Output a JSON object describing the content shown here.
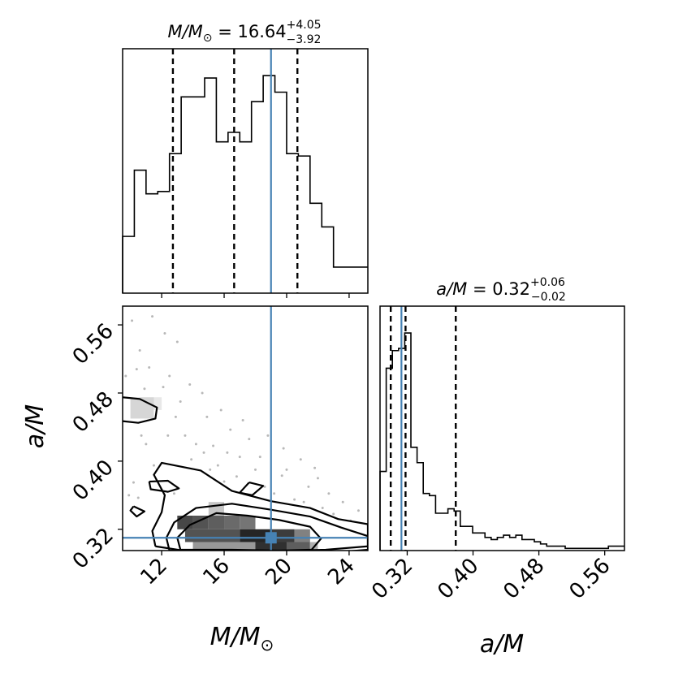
{
  "chart_data": [
    {
      "type": "histogram",
      "panel": "M/Msun marginal",
      "title": "M/M⊙ = 16.64 (+4.05 / −3.92)",
      "title_parts": {
        "lhs": "M/M",
        "sun": "⊙",
        "eq": " = 16.64",
        "plus": "+4.05",
        "minus": "−3.92"
      },
      "xlim": [
        9.5,
        25.2
      ],
      "ticks": [
        12,
        16,
        20,
        24
      ],
      "bins": [
        9.5,
        10.25,
        11.0,
        11.75,
        12.5,
        13.25,
        14.0,
        14.75,
        15.5,
        16.25,
        17.0,
        17.75,
        18.5,
        19.25,
        20.0,
        20.75,
        21.5,
        22.25,
        23.0,
        23.75,
        24.5,
        25.2
      ],
      "counts": [
        0.24,
        0.52,
        0.42,
        0.43,
        0.59,
        0.83,
        0.83,
        0.91,
        0.64,
        0.68,
        0.64,
        0.81,
        0.92,
        0.85,
        0.59,
        0.58,
        0.38,
        0.28,
        0.11,
        0.11,
        0.11
      ],
      "quantiles": [
        12.72,
        16.64,
        20.69
      ],
      "truth": 19.0,
      "line_style": "dashed black (quantiles), solid steelblue (truth)"
    },
    {
      "type": "histogram",
      "panel": "a/M marginal",
      "title": "a/M = 0.32 (+0.06 / −0.02)",
      "title_parts": {
        "lhs": "a/M",
        "eq": " = 0.32",
        "plus": "+0.06",
        "minus": "−0.02"
      },
      "xlim": [
        0.287,
        0.584
      ],
      "ticks": [
        0.32,
        0.4,
        0.48,
        0.56
      ],
      "tick_labels": [
        "0.32",
        "0.40",
        "0.48",
        "0.56"
      ],
      "xlabel": "a/M",
      "bins": [
        0.287,
        0.2945,
        0.302,
        0.3095,
        0.317,
        0.3245,
        0.332,
        0.3395,
        0.347,
        0.3545,
        0.362,
        0.3695,
        0.377,
        0.3845,
        0.392,
        0.3995,
        0.407,
        0.4145,
        0.422,
        0.4295,
        0.437,
        0.4445,
        0.452,
        0.4595,
        0.467,
        0.4745,
        0.482,
        0.4895,
        0.497,
        0.5045,
        0.512,
        0.5195,
        0.527,
        0.5345,
        0.542,
        0.5495,
        0.557,
        0.5645,
        0.572,
        0.584
      ],
      "counts": [
        0.36,
        0.83,
        0.91,
        0.92,
        0.99,
        0.47,
        0.4,
        0.26,
        0.25,
        0.17,
        0.17,
        0.19,
        0.18,
        0.11,
        0.11,
        0.08,
        0.08,
        0.06,
        0.05,
        0.06,
        0.07,
        0.06,
        0.07,
        0.05,
        0.05,
        0.04,
        0.03,
        0.02,
        0.02,
        0.02,
        0.01,
        0.01,
        0.01,
        0.01,
        0.01,
        0.01,
        0.01,
        0.02,
        0.02
      ],
      "quantiles": [
        0.3,
        0.318,
        0.379
      ],
      "truth": 0.313,
      "line_style": "dashed black (quantiles), solid steelblue (truth)"
    },
    {
      "type": "heatmap",
      "panel": "joint M/Msun vs a/M",
      "xlabel": "M/M⊙",
      "xlabel_parts": {
        "lhs": "M/M",
        "sun": "⊙"
      },
      "ylabel": "a/M",
      "xlim": [
        9.5,
        25.2
      ],
      "ylim": [
        0.295,
        0.582
      ],
      "xticks": [
        12,
        16,
        20,
        24
      ],
      "yticks": [
        0.32,
        0.4,
        0.48,
        0.56
      ],
      "ytick_labels": [
        "0.32",
        "0.40",
        "0.48",
        "0.56"
      ],
      "truth": {
        "x": 19.0,
        "y": 0.31
      },
      "density_cells": [
        {
          "x0": 13.0,
          "x1": 14.0,
          "y0": 0.32,
          "y1": 0.336,
          "w": 0.8
        },
        {
          "x0": 14.0,
          "x1": 15.0,
          "y0": 0.32,
          "y1": 0.336,
          "w": 0.75
        },
        {
          "x0": 15.0,
          "x1": 16.0,
          "y0": 0.32,
          "y1": 0.336,
          "w": 0.7
        },
        {
          "x0": 16.0,
          "x1": 17.0,
          "y0": 0.32,
          "y1": 0.336,
          "w": 0.65
        },
        {
          "x0": 17.0,
          "x1": 18.0,
          "y0": 0.32,
          "y1": 0.336,
          "w": 0.6
        },
        {
          "x0": 13.5,
          "x1": 17.0,
          "y0": 0.305,
          "y1": 0.32,
          "w": 0.75
        },
        {
          "x0": 17.0,
          "x1": 19.0,
          "y0": 0.305,
          "y1": 0.32,
          "w": 0.95
        },
        {
          "x0": 19.0,
          "x1": 20.5,
          "y0": 0.305,
          "y1": 0.32,
          "w": 0.85
        },
        {
          "x0": 20.5,
          "x1": 21.5,
          "y0": 0.305,
          "y1": 0.32,
          "w": 0.55
        },
        {
          "x0": 14.0,
          "x1": 18.0,
          "y0": 0.29,
          "y1": 0.305,
          "w": 0.45
        },
        {
          "x0": 18.0,
          "x1": 20.0,
          "y0": 0.29,
          "y1": 0.305,
          "w": 0.9
        },
        {
          "x0": 20.0,
          "x1": 21.5,
          "y0": 0.29,
          "y1": 0.305,
          "w": 0.7
        },
        {
          "x0": 21.5,
          "x1": 22.0,
          "y0": 0.29,
          "y1": 0.305,
          "w": 0.35
        },
        {
          "x0": 15.0,
          "x1": 16.0,
          "y0": 0.336,
          "y1": 0.352,
          "w": 0.25
        },
        {
          "x0": 10.0,
          "x1": 11.5,
          "y0": 0.45,
          "y1": 0.475,
          "w": 0.18
        },
        {
          "x0": 11.5,
          "x1": 12.0,
          "y0": 0.46,
          "y1": 0.475,
          "w": 0.1
        }
      ],
      "contours": [
        [
          [
            13.2,
            0.296
          ],
          [
            13.0,
            0.31
          ],
          [
            13.8,
            0.325
          ],
          [
            15.5,
            0.339
          ],
          [
            17.5,
            0.336
          ],
          [
            19.5,
            0.331
          ],
          [
            21.5,
            0.323
          ],
          [
            22.2,
            0.309
          ],
          [
            21.6,
            0.296
          ],
          [
            19.5,
            0.295
          ],
          [
            16.5,
            0.296
          ],
          [
            13.2,
            0.296
          ]
        ],
        [
          [
            12.5,
            0.295
          ],
          [
            12.3,
            0.31
          ],
          [
            12.8,
            0.328
          ],
          [
            14.2,
            0.345
          ],
          [
            16.5,
            0.35
          ],
          [
            19.0,
            0.343
          ],
          [
            21.5,
            0.335
          ],
          [
            23.5,
            0.322
          ],
          [
            25.2,
            0.312
          ],
          [
            25.2,
            0.3
          ],
          [
            22.5,
            0.296
          ],
          [
            18.5,
            0.294
          ],
          [
            15.0,
            0.294
          ],
          [
            12.5,
            0.295
          ]
        ],
        [
          [
            11.6,
            0.3
          ],
          [
            11.4,
            0.318
          ],
          [
            12.0,
            0.34
          ],
          [
            12.2,
            0.36
          ],
          [
            11.5,
            0.384
          ],
          [
            12.0,
            0.398
          ],
          [
            14.5,
            0.389
          ],
          [
            16.5,
            0.365
          ],
          [
            19.0,
            0.353
          ],
          [
            21.5,
            0.345
          ],
          [
            23.3,
            0.332
          ],
          [
            25.2,
            0.326
          ],
          [
            25.2,
            0.296
          ],
          [
            20.5,
            0.289
          ],
          [
            15.5,
            0.289
          ],
          [
            11.6,
            0.3
          ]
        ],
        [
          [
            9.5,
            0.475
          ],
          [
            10.6,
            0.473
          ],
          [
            11.7,
            0.463
          ],
          [
            11.6,
            0.45
          ],
          [
            10.5,
            0.445
          ],
          [
            9.5,
            0.447
          ]
        ],
        [
          [
            11.2,
            0.376
          ],
          [
            12.4,
            0.377
          ],
          [
            13.1,
            0.368
          ],
          [
            12.4,
            0.364
          ],
          [
            11.3,
            0.367
          ],
          [
            11.2,
            0.376
          ]
        ],
        [
          [
            17.6,
            0.375
          ],
          [
            18.5,
            0.371
          ],
          [
            17.8,
            0.36
          ],
          [
            17.0,
            0.363
          ],
          [
            17.6,
            0.375
          ]
        ],
        [
          [
            10.2,
            0.347
          ],
          [
            10.9,
            0.341
          ],
          [
            10.4,
            0.335
          ],
          [
            10.0,
            0.342
          ],
          [
            10.2,
            0.347
          ]
        ]
      ],
      "scatter_points": [
        [
          10.1,
          0.565
        ],
        [
          10.6,
          0.53
        ],
        [
          11.2,
          0.51
        ],
        [
          12.5,
          0.5
        ],
        [
          13.8,
          0.49
        ],
        [
          10.4,
          0.508
        ],
        [
          11.8,
          0.465
        ],
        [
          12.9,
          0.452
        ],
        [
          13.5,
          0.43
        ],
        [
          14.2,
          0.42
        ],
        [
          12.4,
          0.43
        ],
        [
          11.0,
          0.42
        ],
        [
          15.3,
          0.418
        ],
        [
          16.2,
          0.41
        ],
        [
          17.0,
          0.405
        ],
        [
          15.6,
          0.395
        ],
        [
          16.8,
          0.382
        ],
        [
          18.6,
          0.37
        ],
        [
          19.2,
          0.362
        ],
        [
          20.5,
          0.355
        ],
        [
          21.1,
          0.352
        ],
        [
          22.3,
          0.345
        ],
        [
          23.0,
          0.338
        ],
        [
          24.1,
          0.33
        ],
        [
          18.0,
          0.39
        ],
        [
          19.7,
          0.383
        ],
        [
          14.7,
          0.41
        ],
        [
          13.2,
          0.47
        ],
        [
          10.9,
          0.485
        ],
        [
          12.1,
          0.487
        ],
        [
          14.9,
          0.452
        ],
        [
          16.4,
          0.437
        ],
        [
          17.6,
          0.426
        ],
        [
          18.3,
          0.405
        ],
        [
          20.0,
          0.39
        ],
        [
          21.4,
          0.37
        ],
        [
          22.7,
          0.362
        ],
        [
          10.7,
          0.43
        ],
        [
          11.5,
          0.395
        ],
        [
          10.2,
          0.375
        ],
        [
          9.9,
          0.36
        ],
        [
          10.5,
          0.357
        ],
        [
          13.9,
          0.402
        ],
        [
          15.1,
          0.39
        ],
        [
          16.0,
          0.376
        ],
        [
          12.8,
          0.362
        ],
        [
          9.7,
          0.5
        ],
        [
          12.2,
          0.55
        ],
        [
          13.0,
          0.54
        ],
        [
          11.4,
          0.57
        ],
        [
          14.6,
          0.48
        ],
        [
          15.8,
          0.46
        ],
        [
          17.2,
          0.448
        ],
        [
          18.8,
          0.43
        ],
        [
          19.8,
          0.415
        ],
        [
          21.8,
          0.392
        ],
        [
          23.6,
          0.352
        ],
        [
          24.6,
          0.342
        ],
        [
          20.9,
          0.402
        ],
        [
          22.0,
          0.38
        ]
      ]
    }
  ],
  "colors": {
    "truth": "#4682b4",
    "hist": "#000000",
    "contour": "#000000",
    "scatter": "#b8b8b8"
  }
}
